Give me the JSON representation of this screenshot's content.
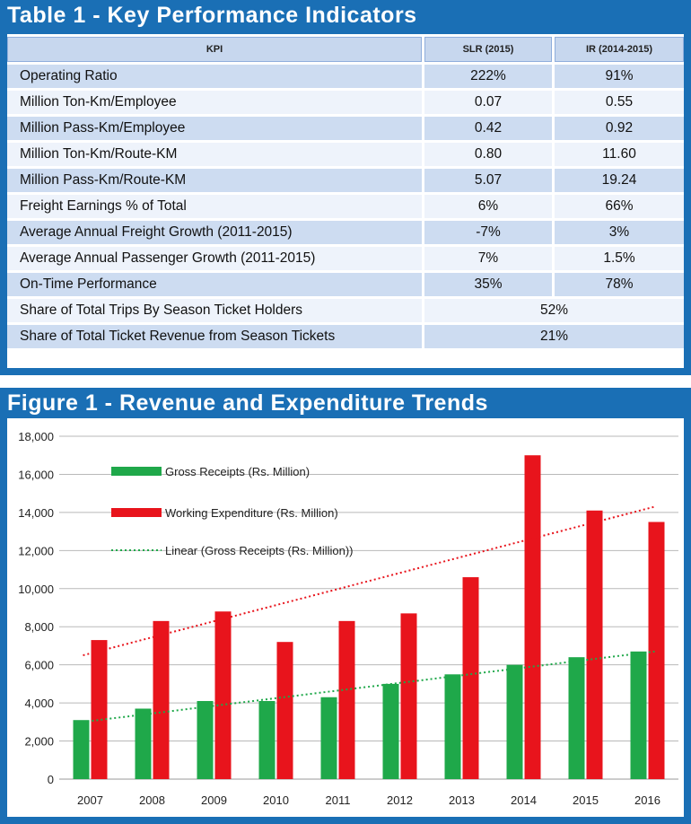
{
  "table": {
    "title": "Table 1 - Key Performance Indicators",
    "headers": [
      "KPI",
      "SLR (2015)",
      "IR (2014-2015)"
    ],
    "rows": [
      {
        "kpi": "Operating Ratio",
        "slr": "222%",
        "ir": "91%"
      },
      {
        "kpi": "Million Ton-Km/Employee",
        "slr": "0.07",
        "ir": "0.55"
      },
      {
        "kpi": "Million Pass-Km/Employee",
        "slr": "0.42",
        "ir": "0.92"
      },
      {
        "kpi": "Million Ton-Km/Route-KM",
        "slr": "0.80",
        "ir": "11.60"
      },
      {
        "kpi": "Million Pass-Km/Route-KM",
        "slr": "5.07",
        "ir": "19.24"
      },
      {
        "kpi": "Freight Earnings % of Total",
        "slr": "6%",
        "ir": "66%"
      },
      {
        "kpi": "Average Annual Freight Growth (2011-2015)",
        "slr": "-7%",
        "ir": "3%"
      },
      {
        "kpi": "Average Annual Passenger Growth (2011-2015)",
        "slr": "7%",
        "ir": "1.5%"
      },
      {
        "kpi": "On-Time Performance",
        "slr": "35%",
        "ir": "78%"
      }
    ],
    "merged_rows": [
      {
        "kpi": "Share of Total Trips By Season Ticket Holders",
        "value": "52%"
      },
      {
        "kpi": "Share of Total Ticket Revenue from Season Tickets",
        "value": "21%"
      }
    ]
  },
  "chart_data": {
    "type": "bar",
    "title": "Figure 1 - Revenue and Expenditure Trends",
    "categories": [
      "2007",
      "2008",
      "2009",
      "2010",
      "2011",
      "2012",
      "2013",
      "2014",
      "2015",
      "2016"
    ],
    "series": [
      {
        "name": "Gross Receipts (Rs. Million)",
        "color": "#1fa84a",
        "values": [
          3100,
          3700,
          4100,
          4100,
          4300,
          5000,
          5500,
          6000,
          6400,
          6700
        ]
      },
      {
        "name": "Working Expenditure (Rs. Million)",
        "color": "#e8141c",
        "values": [
          7300,
          8300,
          8800,
          7200,
          8300,
          8700,
          10600,
          17000,
          14100,
          13500
        ]
      }
    ],
    "trendlines": [
      {
        "name": "Linear (Gross Receipts (Rs. Million))",
        "color": "#1fa84a",
        "start": 3000,
        "end": 6700
      },
      {
        "name": "",
        "color": "#e8141c",
        "start": 6500,
        "end": 14300
      }
    ],
    "ylim": [
      0,
      18000
    ],
    "yticks": [
      "0",
      "2,000",
      "4,000",
      "6,000",
      "8,000",
      "10,000",
      "12,000",
      "14,000",
      "16,000",
      "18,000"
    ],
    "ytick_values": [
      0,
      2000,
      4000,
      6000,
      8000,
      10000,
      12000,
      14000,
      16000,
      18000
    ],
    "grid": true,
    "legend_position": "top-left"
  }
}
